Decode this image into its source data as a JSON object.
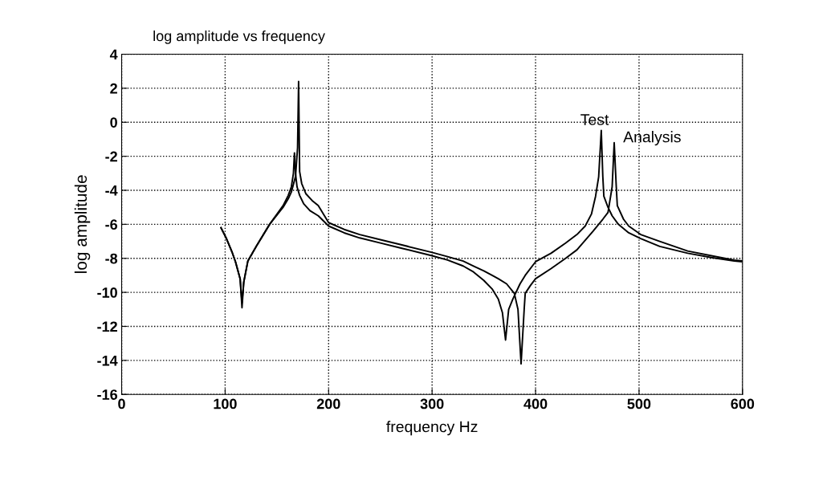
{
  "chart_data": {
    "type": "line",
    "title": "log amplitude vs frequency",
    "xlabel": "frequency Hz",
    "ylabel": "log amplitude",
    "series": [
      {
        "name": "Test",
        "color": "#000000",
        "x": [
          96,
          101,
          106.5,
          110,
          114.5,
          116.3,
          118,
          122,
          130,
          143,
          156,
          161,
          164,
          166,
          167,
          168,
          169.5,
          172,
          176,
          182,
          190,
          200,
          215,
          230,
          250,
          270,
          300,
          315,
          330,
          340,
          350,
          358,
          364,
          368,
          371,
          374,
          378,
          385,
          390,
          400,
          415,
          429,
          440,
          448,
          454,
          458,
          461,
          463.5,
          465,
          466,
          470,
          474,
          480,
          490,
          501.6,
          520,
          547,
          570,
          592,
          600
        ],
        "values": [
          -6.2,
          -6.8,
          -7.6,
          -8.2,
          -9.2,
          -10.9,
          -9.4,
          -8.15,
          -7.3,
          -6.0,
          -4.9,
          -4.3,
          -3.8,
          -3.0,
          -1.8,
          -3.0,
          -3.8,
          -4.3,
          -4.8,
          -5.2,
          -5.5,
          -6.1,
          -6.5,
          -6.8,
          -7.1,
          -7.4,
          -7.85,
          -8.1,
          -8.45,
          -8.8,
          -9.3,
          -9.8,
          -10.4,
          -11.2,
          -12.8,
          -11.0,
          -10.4,
          -9.5,
          -9.0,
          -8.2,
          -7.7,
          -7.1,
          -6.6,
          -6.1,
          -5.4,
          -4.35,
          -3.2,
          -0.48,
          -3.2,
          -4.35,
          -5.0,
          -5.5,
          -6.0,
          -6.5,
          -6.84,
          -7.3,
          -7.7,
          -7.95,
          -8.16,
          -8.2
        ]
      },
      {
        "name": "Analysis",
        "color": "#000000",
        "x": [
          96,
          101,
          106.5,
          110,
          114.5,
          116.3,
          118,
          122,
          130,
          143,
          156,
          161,
          164,
          168,
          170,
          171,
          172,
          174,
          178,
          184,
          190,
          200,
          215,
          230,
          250,
          270,
          300,
          315,
          330,
          340,
          350,
          358,
          364,
          372,
          379.5,
          383,
          386,
          389,
          390,
          395,
          400,
          415,
          429,
          440,
          455.6,
          465,
          470,
          474,
          476,
          478,
          479,
          485,
          490,
          501.6,
          520,
          547,
          570,
          592,
          600
        ],
        "values": [
          -6.2,
          -6.8,
          -7.6,
          -8.2,
          -9.2,
          -10.6,
          -9.4,
          -8.15,
          -7.3,
          -6.0,
          -5.0,
          -4.5,
          -4.1,
          -3.2,
          -1.5,
          2.4,
          -2.9,
          -3.6,
          -4.2,
          -4.6,
          -4.9,
          -5.9,
          -6.3,
          -6.6,
          -6.9,
          -7.2,
          -7.65,
          -7.9,
          -8.16,
          -8.45,
          -8.74,
          -9.0,
          -9.2,
          -9.5,
          -10.06,
          -11.0,
          -14.2,
          -11.0,
          -10.06,
          -9.6,
          -9.2,
          -8.6,
          -8.0,
          -7.5,
          -6.4,
          -5.7,
          -5.3,
          -3.8,
          -1.2,
          -3.8,
          -4.9,
          -5.7,
          -6.1,
          -6.6,
          -7.0,
          -7.57,
          -7.85,
          -8.1,
          -8.15
        ]
      }
    ],
    "xlim": [
      0,
      600
    ],
    "xticks": [
      0,
      100,
      200,
      300,
      400,
      500,
      600
    ],
    "ylim": [
      -16,
      4
    ],
    "yticks": [
      -16,
      -14,
      -12,
      -10,
      -8,
      -6,
      -4,
      -2,
      0,
      2,
      4
    ],
    "grid": true,
    "line_style": "solid"
  }
}
